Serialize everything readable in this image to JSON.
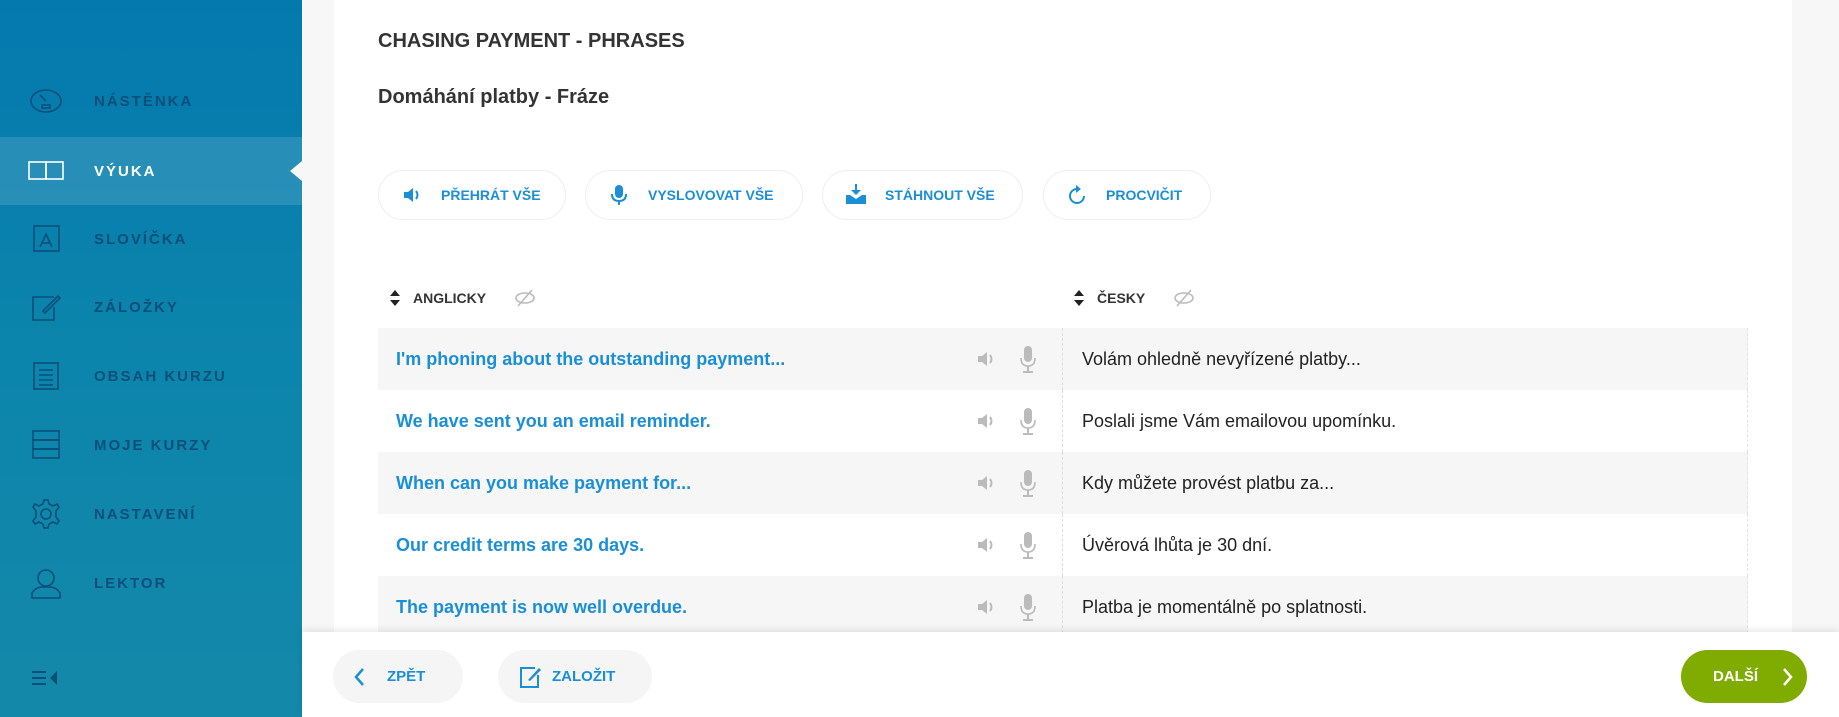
{
  "sidebar": {
    "items": [
      {
        "label": "NÁSTĚNKA",
        "icon": "dashboard-gauge-icon"
      },
      {
        "label": "VÝUKA",
        "icon": "open-book-icon",
        "active": true
      },
      {
        "label": "SLOVÍČKA",
        "icon": "vocabulary-card-icon"
      },
      {
        "label": "ZÁLOŽKY",
        "icon": "edit-note-icon"
      },
      {
        "label": "OBSAH KURZU",
        "icon": "document-list-icon"
      },
      {
        "label": "MOJE KURZY",
        "icon": "courses-list-icon"
      },
      {
        "label": "NASTAVENÍ",
        "icon": "gear-icon"
      },
      {
        "label": "LEKTOR",
        "icon": "tutor-headset-icon"
      }
    ],
    "collapse_icon": "collapse-menu-icon"
  },
  "header": {
    "title": "CHASING PAYMENT - PHRASES",
    "subtitle": "Domáhání platby - Fráze"
  },
  "toolbar": {
    "play_all": "PŘEHRÁT VŠE",
    "pronounce_all": "VYSLOVOVAT VŠE",
    "download_all": "STÁHNOUT VŠE",
    "practice": "PROCVIČIT"
  },
  "table": {
    "col_en": "ANGLICKY",
    "col_cz": "ČESKY",
    "rows": [
      {
        "en": "I'm phoning about the outstanding payment...",
        "cz": "Volám ohledně nevyřízené platby..."
      },
      {
        "en": "We have sent you an email reminder.",
        "cz": "Poslali jsme Vám emailovou upomínku."
      },
      {
        "en": "When can you make payment for...",
        "cz": "Kdy můžete provést platbu za..."
      },
      {
        "en": "Our credit terms are 30 days.",
        "cz": "Úvěrová lhůta je 30 dní."
      },
      {
        "en": "The payment is now well overdue.",
        "cz": "Platba je momentálně po splatnosti."
      }
    ]
  },
  "footer": {
    "back": "ZPĚT",
    "bookmark": "ZALOŽIT",
    "next": "DALŠÍ"
  },
  "colors": {
    "accent": "#1a8fd6",
    "next": "#80ab00",
    "sidebar": "#0479ae"
  }
}
